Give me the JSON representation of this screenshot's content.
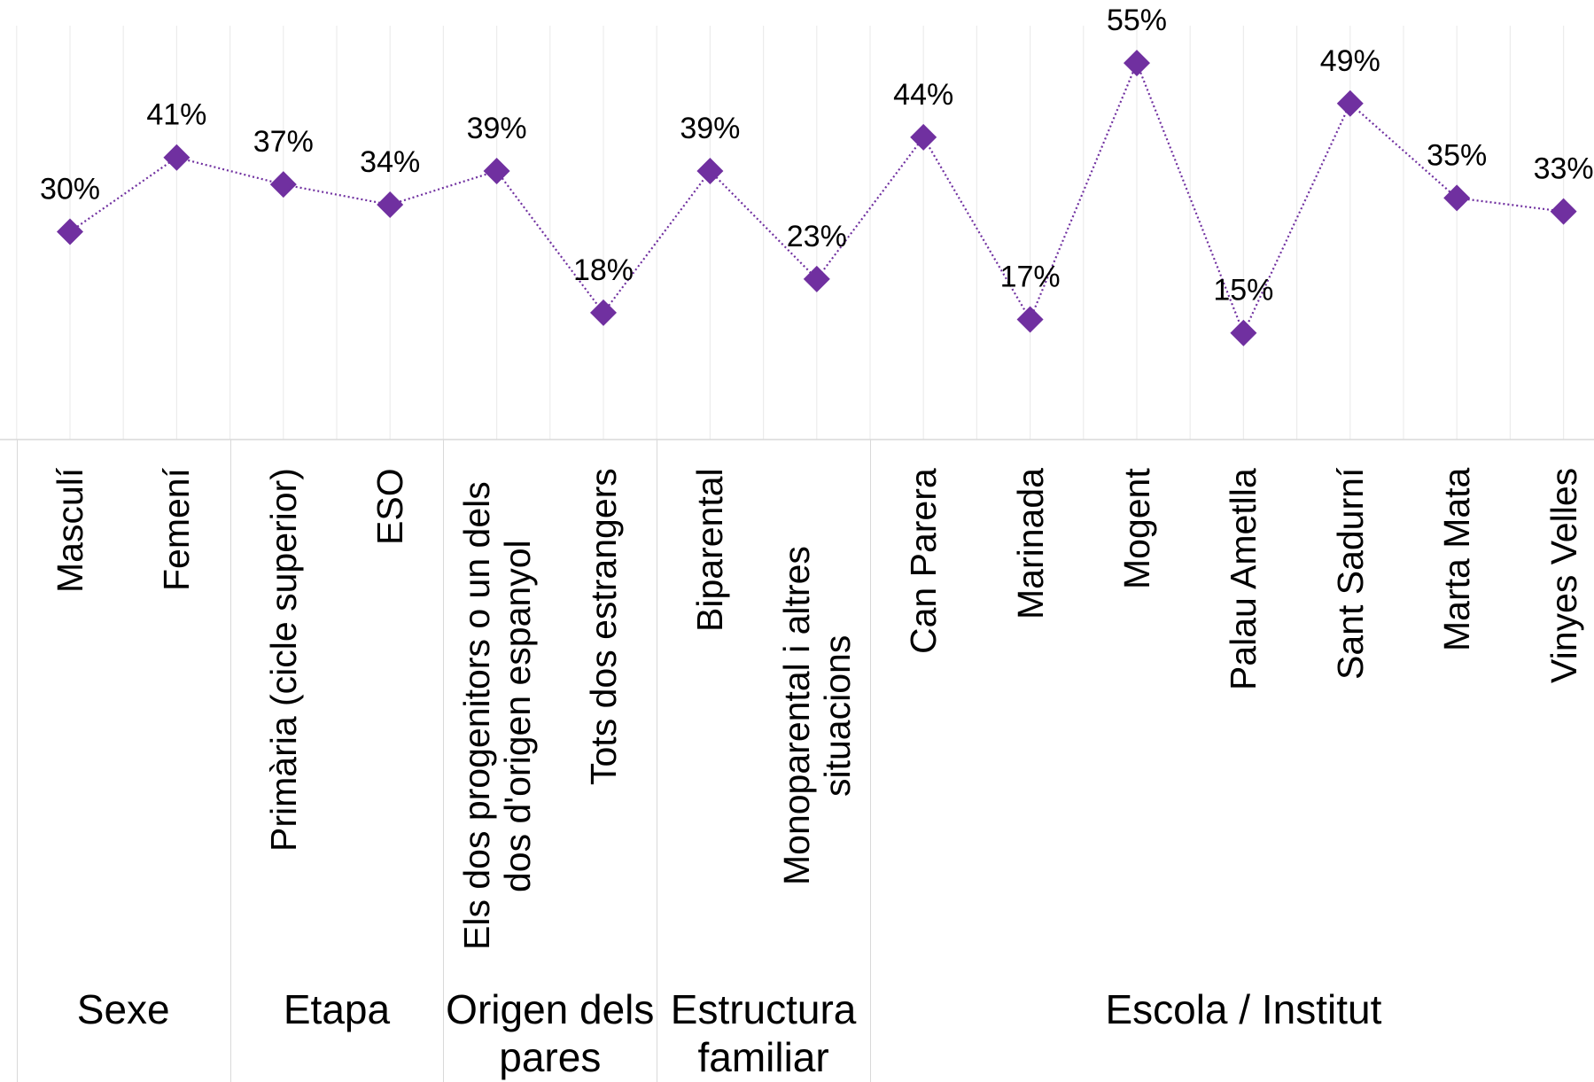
{
  "chart_data": {
    "type": "line",
    "groups": [
      {
        "name": "Sexe",
        "categories": [
          "Masculí",
          "Femení"
        ]
      },
      {
        "name": "Etapa",
        "categories": [
          "Primària (cicle superior)",
          "ESO"
        ]
      },
      {
        "name": "Origen dels pares",
        "categories": [
          "Els dos progenitors o un dels dos d'origen espanyol",
          "Tots dos estrangers"
        ]
      },
      {
        "name": "Estructura familiar",
        "categories": [
          "Biparental",
          "Monoparental i altres situacions"
        ]
      },
      {
        "name": "Escola / Institut",
        "categories": [
          "Can Parera",
          "Marinada",
          "Mogent",
          "Palau Ametlla",
          "Sant Sadurní",
          "Marta Mata",
          "Vinyes Velles"
        ]
      }
    ],
    "values": [
      30,
      41,
      37,
      34,
      39,
      18,
      39,
      23,
      44,
      17,
      55,
      15,
      49,
      35,
      33
    ],
    "value_labels": [
      "30%",
      "41%",
      "37%",
      "34%",
      "39%",
      "18%",
      "39%",
      "23%",
      "44%",
      "17%",
      "55%",
      "15%",
      "49%",
      "35%",
      "33%"
    ],
    "color": "#7030a0",
    "ylim": [
      0,
      60
    ]
  }
}
